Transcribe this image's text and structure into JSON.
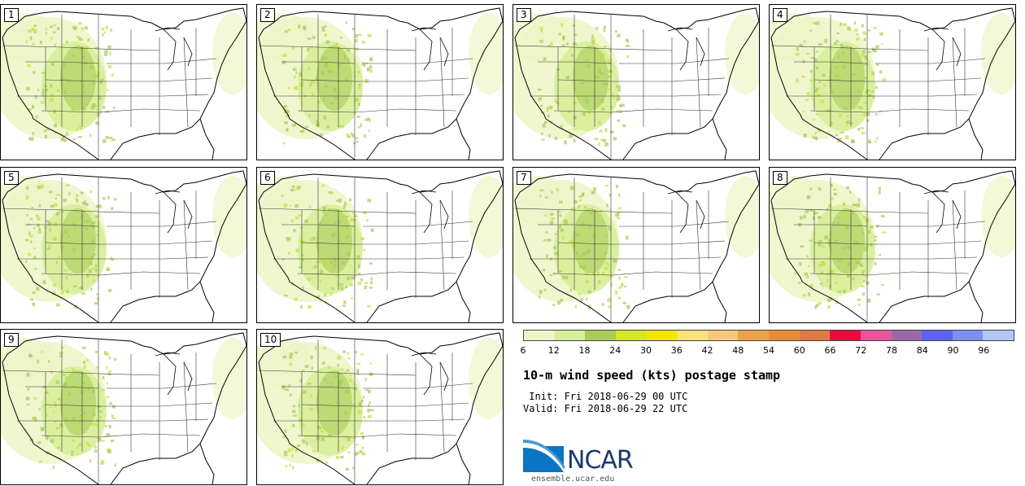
{
  "title": "10-m wind speed (kts) postage stamp",
  "init_line": " Init: Fri 2018-06-29 00 UTC",
  "valid_line": "Valid: Fri 2018-06-29 22 UTC",
  "members": [
    "1",
    "2",
    "3",
    "4",
    "5",
    "6",
    "7",
    "8",
    "9",
    "10"
  ],
  "colorbar": {
    "ticks": [
      "6",
      "12",
      "18",
      "24",
      "30",
      "36",
      "42",
      "48",
      "54",
      "60",
      "66",
      "72",
      "78",
      "84",
      "90",
      "96"
    ],
    "colors": [
      "#eef5c8",
      "#d7ef9a",
      "#a8cb5c",
      "#d6e628",
      "#f5e600",
      "#fbe27a",
      "#f6c97a",
      "#eca24c",
      "#e88b3c",
      "#de7a44",
      "#ea0a3e",
      "#e9559a",
      "#9a6aa8",
      "#5e62ee",
      "#7c90f2",
      "#b3c6f4"
    ]
  },
  "logo": {
    "name": "NCAR",
    "url": "ensemble.ucar.edu"
  }
}
